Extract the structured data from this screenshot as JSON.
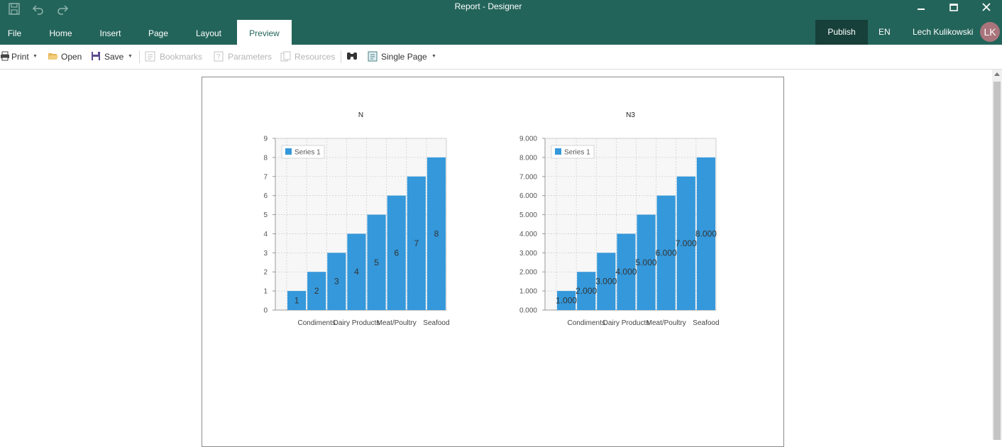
{
  "window": {
    "title": "Report - Designer",
    "controls": [
      "minimize-icon",
      "maximize-icon",
      "close-icon"
    ]
  },
  "quick_access": [
    "save-icon",
    "undo-icon",
    "redo-icon"
  ],
  "menu": {
    "tabs": [
      {
        "label": "File",
        "active": false
      },
      {
        "label": "Home",
        "active": false
      },
      {
        "label": "Insert",
        "active": false
      },
      {
        "label": "Page",
        "active": false
      },
      {
        "label": "Layout",
        "active": false
      },
      {
        "label": "Preview",
        "active": true
      }
    ],
    "publish_label": "Publish",
    "language": "EN",
    "user_name": "Lech Kulikowski",
    "user_initials": "LK"
  },
  "toolbar": {
    "print": "Print",
    "open": "Open",
    "save": "Save",
    "bookmarks": "Bookmarks",
    "parameters": "Parameters",
    "resources": "Resources",
    "find_icon": "binoculars-icon",
    "view_mode": "Single Page"
  },
  "colors": {
    "title_bar": "#23645a",
    "publish_bg": "#164039",
    "avatar_bg": "#a9747b",
    "series": "#3498db"
  },
  "chart_data": [
    {
      "type": "bar",
      "title": "N",
      "categories": [
        "",
        "Condiments",
        "",
        "Dairy Products",
        "",
        "Meat/Poultry",
        "",
        "Seafood"
      ],
      "series": [
        {
          "name": "Series 1",
          "values": [
            1,
            2,
            3,
            4,
            5,
            6,
            7,
            8
          ]
        }
      ],
      "data_labels": [
        "1",
        "2",
        "3",
        "4",
        "5",
        "6",
        "7",
        "8"
      ],
      "y_ticks": [
        "0",
        "1",
        "2",
        "3",
        "4",
        "5",
        "6",
        "7",
        "8",
        "9"
      ],
      "ylim": [
        0,
        9
      ],
      "grid": true,
      "legend": "top-left"
    },
    {
      "type": "bar",
      "title": "N3",
      "categories": [
        "",
        "Condiments",
        "",
        "Dairy Products",
        "",
        "Meat/Poultry",
        "",
        "Seafood"
      ],
      "series": [
        {
          "name": "Series 1",
          "values": [
            1000,
            2000,
            3000,
            4000,
            5000,
            6000,
            7000,
            8000
          ]
        }
      ],
      "data_labels": [
        "1.000",
        "2.000",
        "3.000",
        "4.000",
        "5.000",
        "6.000",
        "7.000",
        "8.000"
      ],
      "y_ticks": [
        "0.000",
        "1.000",
        "2.000",
        "3.000",
        "4.000",
        "5.000",
        "6.000",
        "7.000",
        "8.000",
        "9.000"
      ],
      "ylim": [
        0,
        9000
      ],
      "grid": true,
      "legend": "top-left"
    }
  ]
}
